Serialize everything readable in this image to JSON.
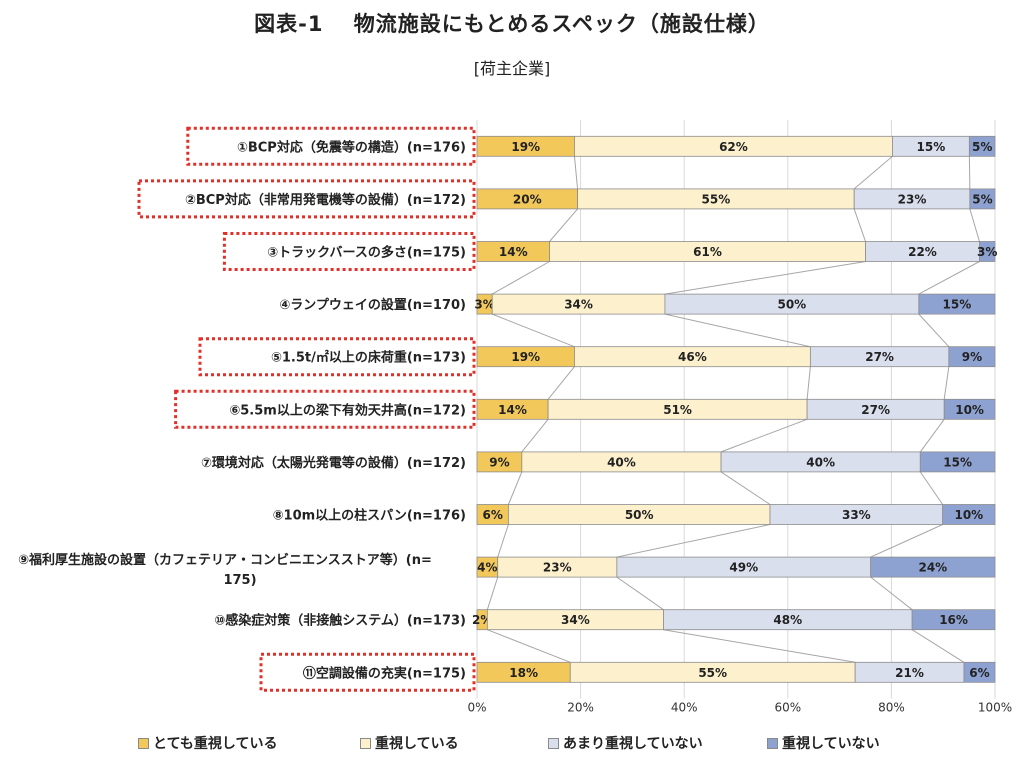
{
  "chart_data": {
    "type": "bar",
    "orientation": "horizontal",
    "stacked": "percent",
    "title": "図表-1　 物流施設にもとめるスペック（施設仕様）",
    "subtitle": "[荷主企業]",
    "categories": [
      "①BCP対応（免震等の構造）(n=176)",
      "②BCP対応（非常用発電機等の設備）(n=172)",
      "③トラックバースの多さ(n=175)",
      "④ランプウェイの設置(n=170)",
      "⑤1.5t/㎡以上の床荷重(n=173)",
      "⑥5.5m以上の梁下有効天井高(n=172)",
      "⑦環境対応（太陽光発電等の設備）(n=172)",
      "⑧10m以上の柱スパン(n=176)",
      "⑨福利厚生施設の設置（カフェテリア・コンビニエンスストア等）(n=175)",
      "⑩感染症対策（非接触システム）(n=173)",
      "⑪空調設備の充実(n=175)"
    ],
    "category_lines": [
      [
        "①BCP対応（免震等の構造）(n=176)"
      ],
      [
        "②BCP対応（非常用発電機等の設備）(n=172)"
      ],
      [
        "③トラックバースの多さ(n=175)"
      ],
      [
        "④ランプウェイの設置(n=170)"
      ],
      [
        "⑤1.5t/㎡以上の床荷重(n=173)"
      ],
      [
        "⑥5.5m以上の梁下有効天井高(n=172)"
      ],
      [
        "⑦環境対応（太陽光発電等の設備）(n=172)"
      ],
      [
        "⑧10m以上の柱スパン(n=176)"
      ],
      [
        "⑨福利厚生施設の設置（カフェテリア・コンビニエンスストア等）(n=",
        "175)"
      ],
      [
        "⑩感染症対策（非接触システム）(n=173)"
      ],
      [
        "⑪空調設備の充実(n=175)"
      ]
    ],
    "highlighted": [
      true,
      true,
      true,
      false,
      true,
      true,
      false,
      false,
      false,
      false,
      true
    ],
    "series": [
      {
        "name": "とても重視している",
        "color": "#f2c85b",
        "values": [
          19,
          20,
          14,
          3,
          19,
          14,
          9,
          6,
          4,
          2,
          18
        ]
      },
      {
        "name": "重視している",
        "color": "#fdf1cd",
        "values": [
          62,
          55,
          61,
          34,
          46,
          51,
          40,
          50,
          23,
          34,
          55
        ]
      },
      {
        "name": "あまり重視していない",
        "color": "#dadfee",
        "values": [
          15,
          23,
          22,
          50,
          27,
          27,
          40,
          33,
          49,
          48,
          21
        ]
      },
      {
        "name": "重視していない",
        "color": "#8ea2d2",
        "values": [
          5,
          5,
          3,
          15,
          9,
          10,
          15,
          10,
          24,
          16,
          6
        ]
      }
    ],
    "value_suffix": "%",
    "x_ticks": [
      "0%",
      "20%",
      "40%",
      "60%",
      "80%",
      "100%"
    ],
    "xlim": [
      0,
      100
    ],
    "series_lines": true,
    "highlight_color": "#e0302a",
    "legend_position": "bottom"
  }
}
